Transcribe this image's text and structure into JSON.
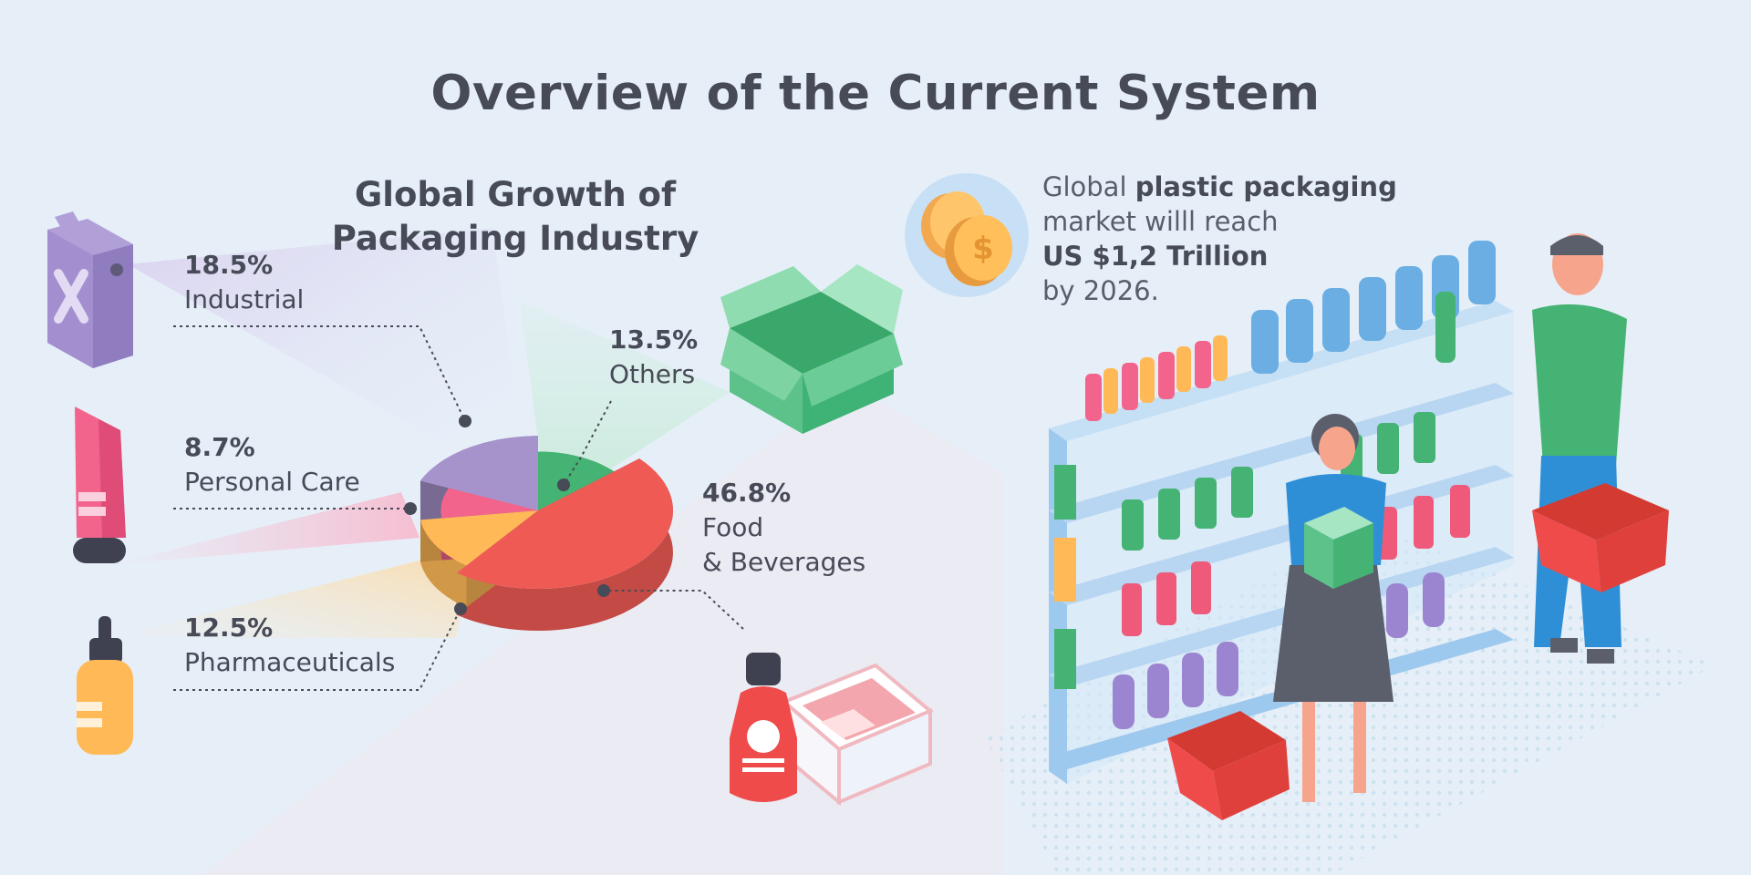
{
  "page": {
    "title": "Overview of the Current System"
  },
  "chart_data": {
    "type": "pie",
    "title": "Global Growth of Packaging Industry",
    "categories": [
      "Industrial",
      "Personal Care",
      "Pharmaceuticals",
      "Food & Beverages",
      "Others"
    ],
    "values": [
      18.5,
      8.7,
      12.5,
      46.8,
      13.5
    ],
    "value_labels": [
      "18.5%",
      "8.7%",
      "12.5%",
      "46.8%",
      "13.5%"
    ],
    "name_lines": [
      [
        "Industrial"
      ],
      [
        "Personal Care"
      ],
      [
        "Pharmaceuticals"
      ],
      [
        "Food",
        "& Beverages"
      ],
      [
        "Others"
      ]
    ],
    "colors": [
      "#a793cc",
      "#f3648c",
      "#ffb957",
      "#ef5a55",
      "#45b373"
    ]
  },
  "market": {
    "line1_prefix": "Global ",
    "line1_bold": "plastic packaging",
    "line2": "market willl reach",
    "line3_bold": "US $1,2 Trillion",
    "line4": "by 2026."
  },
  "icons": {
    "industrial": "jerry-can-icon",
    "personal_care": "cream-tube-icon",
    "pharmaceuticals": "dropper-bottle-icon",
    "food": "sauce-bottle-and-meat-tray-icon",
    "others": "open-cardboard-box-icon",
    "coins": "coins-icon"
  }
}
